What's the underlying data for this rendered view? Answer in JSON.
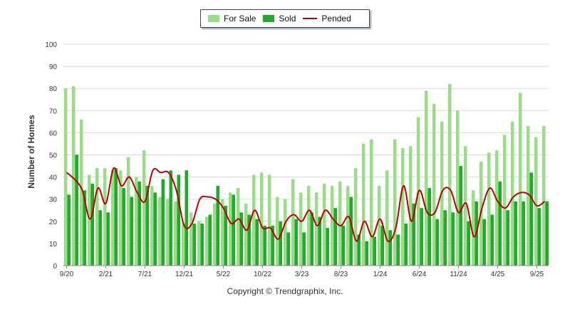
{
  "legend": {
    "for_sale": "For Sale",
    "sold": "Sold",
    "pended": "Pended"
  },
  "copyright": "Copyright © Trendgraphix, Inc.",
  "colors": {
    "for_sale": "#99dd88",
    "sold": "#1faa2a",
    "pended": "#c00000",
    "grid": "#d8d8d8"
  },
  "chart_data": {
    "type": "bar",
    "ylabel": "Number of Homes",
    "xlabel": "",
    "ylim": [
      0,
      100
    ],
    "yticks": [
      0,
      10,
      20,
      30,
      40,
      50,
      60,
      70,
      80,
      90,
      100
    ],
    "grid": true,
    "legend_position": "top-center",
    "x_tick_labels": [
      {
        "index": 0,
        "label": "9/20"
      },
      {
        "index": 5,
        "label": "2/21"
      },
      {
        "index": 10,
        "label": "7/21"
      },
      {
        "index": 15,
        "label": "12/21"
      },
      {
        "index": 20,
        "label": "5/22"
      },
      {
        "index": 25,
        "label": "10/22"
      },
      {
        "index": 30,
        "label": "3/23"
      },
      {
        "index": 35,
        "label": "8/23"
      },
      {
        "index": 40,
        "label": "1/24"
      },
      {
        "index": 45,
        "label": "6/24"
      },
      {
        "index": 50,
        "label": "11/24"
      },
      {
        "index": 55,
        "label": "4/25"
      },
      {
        "index": 60,
        "label": "9/25"
      }
    ],
    "series": [
      {
        "name": "For Sale",
        "type": "bar",
        "values": [
          80,
          81,
          66,
          41,
          44,
          44,
          43,
          43,
          49,
          40,
          52,
          36,
          31,
          30,
          29,
          19,
          24,
          20,
          22,
          28,
          30,
          33,
          35,
          28,
          41,
          42,
          41,
          31,
          30,
          39,
          33,
          36,
          33,
          37,
          36,
          38,
          36,
          44,
          55,
          57,
          36,
          43,
          57,
          53,
          54,
          67,
          79,
          73,
          65,
          82,
          70,
          54,
          34,
          47,
          51,
          52,
          59,
          65,
          78,
          63,
          58,
          63
        ]
      },
      {
        "name": "Sold",
        "type": "bar",
        "values": [
          32,
          50,
          34,
          37,
          25,
          24,
          44,
          35,
          31,
          38,
          36,
          33,
          39,
          43,
          41,
          43,
          19,
          19,
          23,
          36,
          27,
          32,
          24,
          23,
          21,
          18,
          18,
          20,
          15,
          21,
          15,
          24,
          22,
          17,
          26,
          18,
          31,
          14,
          11,
          13,
          18,
          16,
          14,
          19,
          28,
          26,
          35,
          21,
          25,
          24,
          45,
          20,
          29,
          21,
          23,
          38,
          25,
          29,
          29,
          42,
          26,
          29
        ]
      },
      {
        "name": "Pended",
        "type": "line",
        "values": [
          42,
          39,
          34,
          21,
          35,
          28,
          44,
          36,
          40,
          33,
          29,
          43,
          42,
          42,
          34,
          18,
          19,
          30,
          31,
          30,
          26,
          19,
          21,
          16,
          25,
          17,
          17,
          12,
          20,
          23,
          20,
          25,
          18,
          25,
          21,
          18,
          22,
          11,
          20,
          13,
          21,
          11,
          17,
          36,
          20,
          34,
          24,
          24,
          34,
          34,
          24,
          28,
          13,
          26,
          35,
          29,
          26,
          31,
          33,
          32,
          27,
          29
        ]
      }
    ]
  }
}
